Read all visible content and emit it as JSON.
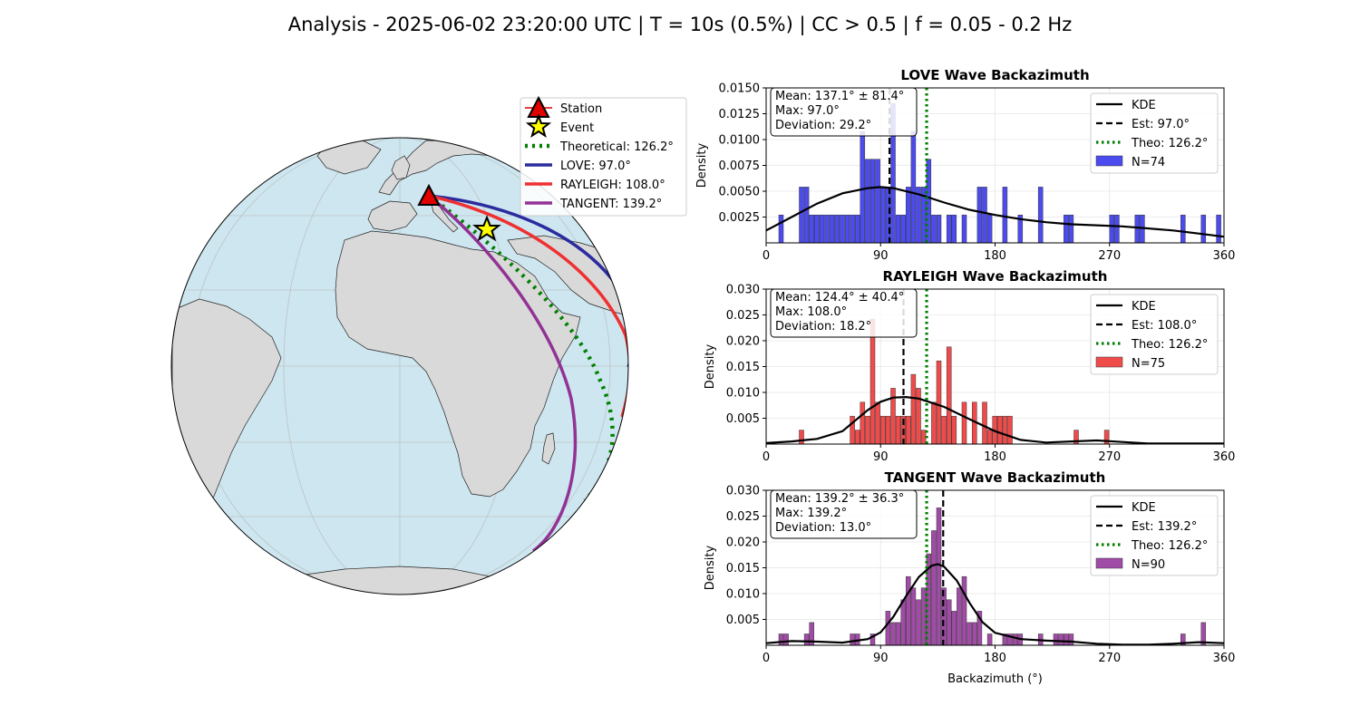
{
  "title": "Analysis - 2025-06-02 23:20:00 UTC | T = 10s (0.5%) | CC > 0.5 | f = 0.05 - 0.2 Hz",
  "map": {
    "legend": [
      {
        "label": "Station",
        "color": "#e00000",
        "marker": "triangle"
      },
      {
        "label": "Event",
        "color": "#ffff00",
        "marker": "star"
      },
      {
        "label": "Theoretical: 126.2°",
        "color": "#008000",
        "style": "dotted"
      },
      {
        "label": "LOVE: 97.0°",
        "color": "#2b2b9e",
        "style": "solid"
      },
      {
        "label": "RAYLEIGH: 108.0°",
        "color": "#f03030",
        "style": "solid"
      },
      {
        "label": "TANGENT: 139.2°",
        "color": "#923294",
        "style": "solid"
      }
    ],
    "colors": {
      "ocean": "#cde6ef",
      "land": "#d9d9d9"
    }
  },
  "chart_data": [
    {
      "type": "bar",
      "title": "LOVE Wave Backazimuth",
      "xlabel": "",
      "ylabel": "Density",
      "xlim": [
        0,
        360
      ],
      "ylim": [
        0,
        0.015
      ],
      "xticks": [
        "0",
        "90",
        "180",
        "270",
        "360"
      ],
      "yticks": [
        "0.0025",
        "0.0050",
        "0.0075",
        "0.0100",
        "0.0125",
        "0.0150"
      ],
      "yticks_values": [
        0.0025,
        0.005,
        0.0075,
        0.01,
        0.0125,
        0.015
      ],
      "bar_color": "#4b4bf0",
      "bins": [
        [
          10,
          0.0027
        ],
        [
          26,
          0.0054
        ],
        [
          30,
          0.0054
        ],
        [
          34,
          0.0027
        ],
        [
          38,
          0.0027
        ],
        [
          42,
          0.0027
        ],
        [
          46,
          0.0027
        ],
        [
          50,
          0.0027
        ],
        [
          54,
          0.0027
        ],
        [
          58,
          0.0027
        ],
        [
          62,
          0.0027
        ],
        [
          66,
          0.0027
        ],
        [
          70,
          0.0027
        ],
        [
          74,
          0.0108
        ],
        [
          78,
          0.0081
        ],
        [
          82,
          0.0081
        ],
        [
          86,
          0.0081
        ],
        [
          90,
          0.0054
        ],
        [
          94,
          0.0054
        ],
        [
          98,
          0.0135
        ],
        [
          102,
          0.0027
        ],
        [
          106,
          0.0027
        ],
        [
          110,
          0.0054
        ],
        [
          114,
          0.0108
        ],
        [
          118,
          0.0054
        ],
        [
          122,
          0.0054
        ],
        [
          126,
          0.0081
        ],
        [
          130,
          0.0027
        ],
        [
          134,
          0.0027
        ],
        [
          142,
          0.0027
        ],
        [
          146,
          0.0027
        ],
        [
          154,
          0.0027
        ],
        [
          166,
          0.0054
        ],
        [
          170,
          0.0054
        ],
        [
          174,
          0.0027
        ],
        [
          186,
          0.0054
        ],
        [
          198,
          0.0027
        ],
        [
          214,
          0.0054
        ],
        [
          234,
          0.0027
        ],
        [
          238,
          0.0027
        ],
        [
          270,
          0.0027
        ],
        [
          274,
          0.0027
        ],
        [
          290,
          0.0027
        ],
        [
          294,
          0.0027
        ],
        [
          326,
          0.0027
        ],
        [
          342,
          0.0027
        ],
        [
          354,
          0.0027
        ]
      ],
      "kde": {
        "x": [
          0,
          20,
          40,
          60,
          80,
          90,
          100,
          120,
          140,
          160,
          180,
          200,
          220,
          240,
          260,
          280,
          300,
          320,
          340,
          360
        ],
        "y": [
          0.0012,
          0.0025,
          0.0038,
          0.0048,
          0.0053,
          0.0054,
          0.0053,
          0.0047,
          0.0039,
          0.0032,
          0.0027,
          0.0023,
          0.002,
          0.0018,
          0.0017,
          0.0016,
          0.0014,
          0.0012,
          0.0009,
          0.0006
        ]
      },
      "est": 97.0,
      "theo": 126.2,
      "stats": [
        "Mean: 137.1° ± 81.4°",
        "Max: 97.0°",
        "Deviation: 29.2°"
      ],
      "legend": [
        "KDE",
        "Est: 97.0°",
        "Theo: 126.2°",
        "N=74"
      ]
    },
    {
      "type": "bar",
      "title": "RAYLEIGH Wave Backazimuth",
      "xlabel": "",
      "ylabel": "Density",
      "xlim": [
        0,
        360
      ],
      "ylim": [
        0,
        0.03
      ],
      "xticks": [
        "0",
        "90",
        "180",
        "270",
        "360"
      ],
      "yticks": [
        "0.005",
        "0.010",
        "0.015",
        "0.020",
        "0.025",
        "0.030"
      ],
      "yticks_values": [
        0.005,
        0.01,
        0.015,
        0.02,
        0.025,
        0.03
      ],
      "bar_color": "#f04b4b",
      "bins": [
        [
          26,
          0.0027
        ],
        [
          66,
          0.0054
        ],
        [
          70,
          0.0027
        ],
        [
          74,
          0.0081
        ],
        [
          78,
          0.0054
        ],
        [
          82,
          0.0242
        ],
        [
          86,
          0.0081
        ],
        [
          90,
          0.0054
        ],
        [
          94,
          0.0054
        ],
        [
          98,
          0.0108
        ],
        [
          102,
          0.0054
        ],
        [
          106,
          0.0054
        ],
        [
          110,
          0.0054
        ],
        [
          114,
          0.0135
        ],
        [
          118,
          0.0108
        ],
        [
          122,
          0.0027
        ],
        [
          130,
          0.0081
        ],
        [
          134,
          0.0161
        ],
        [
          138,
          0.0054
        ],
        [
          142,
          0.0188
        ],
        [
          146,
          0.0054
        ],
        [
          154,
          0.0081
        ],
        [
          162,
          0.0081
        ],
        [
          170,
          0.0081
        ],
        [
          174,
          0.0027
        ],
        [
          178,
          0.0054
        ],
        [
          182,
          0.0054
        ],
        [
          186,
          0.0054
        ],
        [
          190,
          0.0054
        ],
        [
          242,
          0.0027
        ],
        [
          266,
          0.0027
        ]
      ],
      "kde": {
        "x": [
          0,
          20,
          40,
          60,
          80,
          90,
          100,
          110,
          120,
          140,
          160,
          180,
          200,
          220,
          240,
          260,
          280,
          300,
          320,
          340,
          360
        ],
        "y": [
          0.0002,
          0.0005,
          0.001,
          0.0025,
          0.0066,
          0.0082,
          0.009,
          0.0091,
          0.0088,
          0.0072,
          0.0048,
          0.0025,
          0.0008,
          0.0003,
          0.0005,
          0.0007,
          0.0004,
          0.0001,
          0.0001,
          0.0001,
          0.0001
        ]
      },
      "est": 108.0,
      "theo": 126.2,
      "stats": [
        "Mean: 124.4° ± 40.4°",
        "Max: 108.0°",
        "Deviation: 18.2°"
      ],
      "legend": [
        "KDE",
        "Est: 108.0°",
        "Theo: 126.2°",
        "N=75"
      ]
    },
    {
      "type": "bar",
      "title": "TANGENT Wave Backazimuth",
      "xlabel": "Backazimuth (°)",
      "ylabel": "Density",
      "xlim": [
        0,
        360
      ],
      "ylim": [
        0,
        0.03
      ],
      "xticks": [
        "0",
        "90",
        "180",
        "270",
        "360"
      ],
      "yticks": [
        "0.005",
        "0.010",
        "0.015",
        "0.020",
        "0.025",
        "0.030"
      ],
      "yticks_values": [
        0.005,
        0.01,
        0.015,
        0.02,
        0.025,
        0.03
      ],
      "bar_color": "#a04ba6",
      "bins": [
        [
          10,
          0.0022
        ],
        [
          14,
          0.0022
        ],
        [
          30,
          0.0022
        ],
        [
          34,
          0.0044
        ],
        [
          66,
          0.0022
        ],
        [
          70,
          0.0022
        ],
        [
          82,
          0.0022
        ],
        [
          94,
          0.0066
        ],
        [
          98,
          0.0044
        ],
        [
          102,
          0.0044
        ],
        [
          106,
          0.0088
        ],
        [
          110,
          0.0133
        ],
        [
          114,
          0.0111
        ],
        [
          118,
          0.0088
        ],
        [
          122,
          0.0111
        ],
        [
          126,
          0.0177
        ],
        [
          130,
          0.0222
        ],
        [
          134,
          0.0266
        ],
        [
          138,
          0.0111
        ],
        [
          142,
          0.0088
        ],
        [
          146,
          0.0066
        ],
        [
          150,
          0.0111
        ],
        [
          154,
          0.0133
        ],
        [
          158,
          0.0044
        ],
        [
          162,
          0.0044
        ],
        [
          166,
          0.0066
        ],
        [
          174,
          0.0022
        ],
        [
          186,
          0.0022
        ],
        [
          190,
          0.0022
        ],
        [
          194,
          0.0022
        ],
        [
          198,
          0.0022
        ],
        [
          214,
          0.0022
        ],
        [
          226,
          0.0022
        ],
        [
          230,
          0.0022
        ],
        [
          234,
          0.0022
        ],
        [
          238,
          0.0022
        ],
        [
          326,
          0.0022
        ],
        [
          342,
          0.0044
        ]
      ],
      "kde": {
        "x": [
          0,
          20,
          40,
          60,
          80,
          90,
          100,
          110,
          120,
          130,
          135,
          140,
          150,
          160,
          170,
          180,
          200,
          220,
          240,
          260,
          280,
          300,
          320,
          340,
          360
        ],
        "y": [
          0.0004,
          0.0008,
          0.0007,
          0.0005,
          0.0012,
          0.0025,
          0.0055,
          0.0095,
          0.0132,
          0.0154,
          0.0157,
          0.0152,
          0.0125,
          0.0082,
          0.0045,
          0.0024,
          0.0012,
          0.0009,
          0.0007,
          0.0003,
          0.0001,
          0.0001,
          0.0003,
          0.0006,
          0.0004
        ]
      },
      "est": 139.2,
      "theo": 126.2,
      "stats": [
        "Mean: 139.2° ± 36.3°",
        "Max: 139.2°",
        "Deviation: 13.0°"
      ],
      "legend": [
        "KDE",
        "Est: 139.2°",
        "Theo: 126.2°",
        "N=90"
      ]
    }
  ]
}
